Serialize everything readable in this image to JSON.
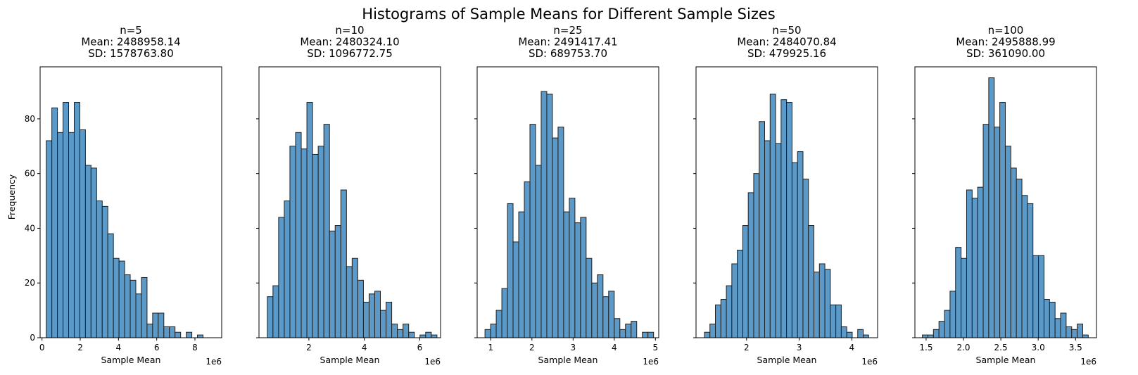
{
  "figure": {
    "suptitle": "Histograms of Sample Means for Different Sample Sizes",
    "shared_ylabel": "Frequency"
  },
  "chart_data": [
    {
      "type": "bar",
      "title": "n=5\nMean: 2488958.14\nSD: 1578763.80",
      "xlabel": "Sample Mean",
      "ylabel": "Frequency",
      "x_offset_label": "1e6",
      "xlim": [
        -0.1,
        9.4
      ],
      "ylim": [
        0,
        99
      ],
      "xticks": [
        0,
        2,
        4,
        6,
        8
      ],
      "xtick_labels": [
        "0",
        "2",
        "4",
        "6",
        "8"
      ],
      "yticks": [
        0,
        20,
        40,
        60,
        80
      ],
      "ytick_labels": [
        "0",
        "20",
        "40",
        "60",
        "80"
      ],
      "bin_start": 0.22,
      "bin_width": 0.293,
      "values": [
        72,
        84,
        75,
        86,
        75,
        86,
        76,
        63,
        62,
        50,
        48,
        38,
        29,
        28,
        23,
        21,
        16,
        22,
        5,
        9,
        9,
        4,
        4,
        2,
        0,
        2,
        0,
        1,
        0,
        0
      ]
    },
    {
      "type": "bar",
      "title": "n=10\nMean: 2480324.10\nSD: 1096772.75",
      "xlabel": "Sample Mean",
      "ylabel": "",
      "x_offset_label": "1e6",
      "xlim": [
        0.2,
        6.75
      ],
      "ylim": [
        0,
        99
      ],
      "xticks": [
        2,
        4,
        6
      ],
      "xtick_labels": [
        "2",
        "4",
        "6"
      ],
      "yticks": [
        0,
        20,
        40,
        60,
        80
      ],
      "ytick_labels": [
        "",
        "",
        "",
        "",
        ""
      ],
      "bin_start": 0.5,
      "bin_width": 0.204,
      "values": [
        15,
        19,
        44,
        50,
        70,
        75,
        69,
        86,
        67,
        70,
        78,
        39,
        41,
        54,
        26,
        29,
        21,
        13,
        16,
        17,
        10,
        13,
        5,
        3,
        5,
        2,
        0,
        1,
        2,
        1
      ]
    },
    {
      "type": "bar",
      "title": "n=25\nMean: 2491417.41\nSD: 689753.70",
      "xlabel": "Sample Mean",
      "ylabel": "",
      "x_offset_label": "1e6",
      "xlim": [
        0.67,
        5.08
      ],
      "ylim": [
        0,
        99
      ],
      "xticks": [
        1,
        2,
        3,
        4,
        5
      ],
      "xtick_labels": [
        "1",
        "2",
        "3",
        "4",
        "5"
      ],
      "yticks": [
        0,
        20,
        40,
        60,
        80
      ],
      "ytick_labels": [
        "",
        "",
        "",
        "",
        ""
      ],
      "bin_start": 0.86,
      "bin_width": 0.1365,
      "values": [
        3,
        5,
        10,
        18,
        49,
        35,
        46,
        57,
        78,
        63,
        90,
        89,
        73,
        77,
        46,
        51,
        42,
        44,
        29,
        20,
        23,
        15,
        17,
        7,
        3,
        5,
        6,
        0,
        2,
        2
      ]
    },
    {
      "type": "bar",
      "title": "n=50\nMean: 2484070.84\nSD: 479925.16",
      "xlabel": "Sample Mean",
      "ylabel": "",
      "x_offset_label": "1e6",
      "xlim": [
        1.04,
        4.49
      ],
      "ylim": [
        0,
        99
      ],
      "xticks": [
        2,
        3,
        4
      ],
      "xtick_labels": [
        "2",
        "3",
        "4"
      ],
      "yticks": [
        0,
        20,
        40,
        60,
        80
      ],
      "ytick_labels": [
        "",
        "",
        "",
        "",
        ""
      ],
      "bin_start": 1.2,
      "bin_width": 0.104,
      "values": [
        2,
        5,
        12,
        14,
        19,
        27,
        32,
        41,
        53,
        60,
        79,
        72,
        89,
        71,
        87,
        86,
        64,
        68,
        58,
        41,
        24,
        27,
        25,
        12,
        12,
        4,
        2,
        0,
        3,
        1
      ]
    },
    {
      "type": "bar",
      "title": "n=100\nMean: 2495888.99\nSD: 361090.00",
      "xlabel": "Sample Mean",
      "ylabel": "",
      "x_offset_label": "1e6",
      "xlim": [
        1.35,
        3.78
      ],
      "ylim": [
        0,
        99
      ],
      "xticks": [
        1.5,
        2.0,
        2.5,
        3.0,
        3.5
      ],
      "xtick_labels": [
        "1.5",
        "2.0",
        "2.5",
        "3.0",
        "3.5"
      ],
      "yticks": [
        0,
        20,
        40,
        60,
        80
      ],
      "ytick_labels": [
        "",
        "",
        "",
        "",
        ""
      ],
      "bin_start": 1.45,
      "bin_width": 0.074,
      "values": [
        1,
        1,
        3,
        6,
        10,
        17,
        33,
        29,
        54,
        51,
        55,
        78,
        95,
        77,
        86,
        70,
        62,
        58,
        52,
        49,
        30,
        30,
        14,
        13,
        7,
        9,
        4,
        3,
        5,
        1
      ]
    }
  ]
}
